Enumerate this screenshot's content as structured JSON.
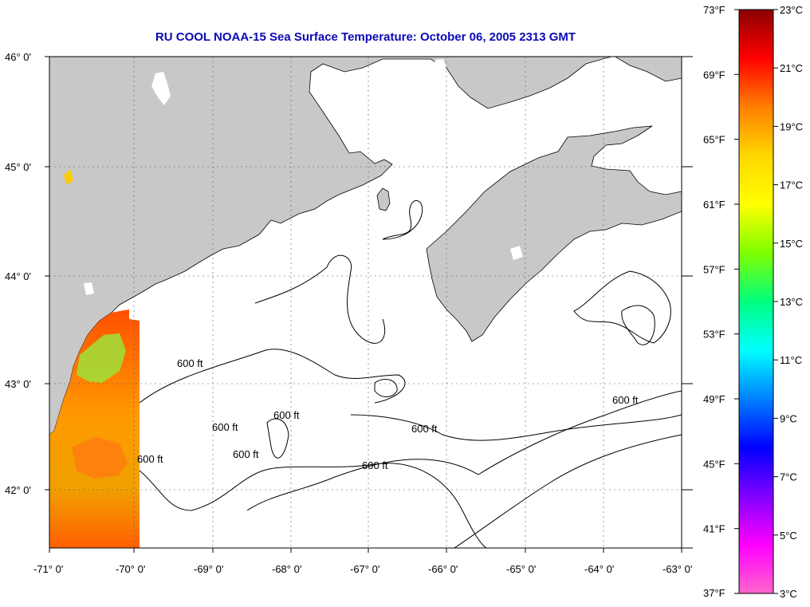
{
  "title": "RU COOL  NOAA-15  Sea Surface Temperature:  October 06, 2005 2313 GMT",
  "map": {
    "lon_labels": [
      "-71° 0'",
      "-70° 0'",
      "-69° 0'",
      "-68° 0'",
      "-67° 0'",
      "-66° 0'",
      "-65° 0'",
      "-64° 0'",
      "-63° 0'"
    ],
    "lat_labels": [
      "46° 0'",
      "45° 0'",
      "44° 0'",
      "43° 0'",
      "42° 0'"
    ],
    "contour_label": "600 ft",
    "colors": {
      "land": "#c8c8c8",
      "water": "#ffffff",
      "title": "#0a0ab4"
    }
  },
  "colorbar": {
    "f_labels": [
      "73°F",
      "69°F",
      "65°F",
      "61°F",
      "57°F",
      "53°F",
      "49°F",
      "45°F",
      "41°F",
      "37°F"
    ],
    "c_labels": [
      "23°C",
      "21°C",
      "19°C",
      "17°C",
      "15°C",
      "13°C",
      "11°C",
      "9°C",
      "7°C",
      "5°C",
      "3°C"
    ],
    "stops": [
      "#8b0000",
      "#ff0000",
      "#ff7f00",
      "#ffd700",
      "#ffff00",
      "#7fff00",
      "#00ff7f",
      "#00ffff",
      "#0080ff",
      "#0000ff",
      "#7f00ff",
      "#ff00ff",
      "#ff66cc"
    ]
  }
}
